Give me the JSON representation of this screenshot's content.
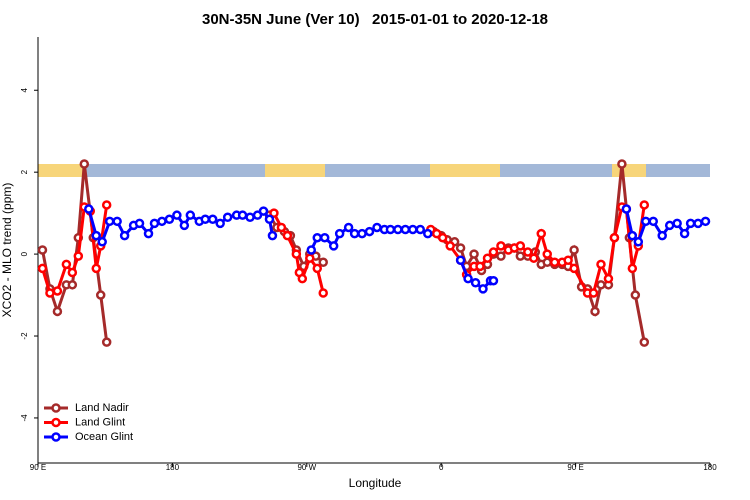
{
  "chart_data": {
    "type": "line",
    "title": "30N-35N June (Ver 10)   2015-01-01 to 2020-12-18",
    "x_label": "Longitude",
    "y_label": "XCO2 - MLO trend (ppm)",
    "xlim": [
      90,
      540
    ],
    "ylim": [
      -5.1,
      5.3
    ],
    "xticks": [
      {
        "value": 90,
        "label": "90 E"
      },
      180,
      {
        "value": 270,
        "label": "90 W"
      },
      {
        "value": 360,
        "label": "0"
      },
      {
        "value": 450,
        "label": "90 E"
      },
      {
        "value": 540,
        "label": "180"
      }
    ],
    "yticks": [
      -4,
      -2,
      0,
      2,
      4
    ],
    "legend": "bottom-left",
    "series": [
      {
        "name": "Land Nadir",
        "color": "#a52a2a",
        "x": [
          93,
          98,
          103,
          109,
          113,
          117,
          121,
          127,
          132,
          136,
          null,
          245,
          250,
          255,
          259,
          263,
          268,
          272,
          276,
          281,
          null,
          355,
          360,
          364,
          369,
          373,
          377,
          382,
          387,
          391,
          395,
          400,
          405,
          409,
          413,
          418,
          423,
          427,
          431,
          436,
          441,
          445,
          449,
          454,
          458,
          463,
          467,
          472,
          476,
          481,
          486,
          490,
          496
        ],
        "values": [
          0.1,
          -0.85,
          -1.4,
          -0.75,
          -0.75,
          0.4,
          2.2,
          0.4,
          -1.0,
          -2.15,
          null,
          0.95,
          0.65,
          0.55,
          0.45,
          0.1,
          -0.3,
          0,
          -0.05,
          -0.2,
          null,
          0.55,
          0.45,
          0.35,
          0.3,
          0.15,
          -0.3,
          0,
          -0.4,
          -0.25,
          0,
          -0.05,
          0.15,
          0.15,
          -0.05,
          -0.05,
          0.05,
          -0.25,
          -0.2,
          -0.25,
          -0.25,
          -0.3,
          0.1,
          -0.8,
          -0.85,
          -1.4,
          -0.75,
          -0.75,
          0.4,
          2.2,
          0.4,
          -1.0,
          -2.15
        ]
      },
      {
        "name": "Land Glint",
        "color": "#ff0000",
        "x": [
          93,
          98,
          103,
          109,
          113,
          117,
          121,
          125,
          129,
          132,
          136,
          null,
          248,
          253,
          257,
          263,
          265,
          267,
          272,
          277,
          281,
          null,
          353,
          357,
          361,
          366,
          373,
          377,
          382,
          386,
          391,
          395,
          400,
          405,
          409,
          413,
          418,
          422,
          427,
          431,
          436,
          441,
          445,
          449,
          458,
          462,
          467,
          472,
          476,
          481,
          484,
          488,
          492,
          496
        ],
        "values": [
          -0.35,
          -0.95,
          -0.9,
          -0.25,
          -0.45,
          -0.05,
          1.15,
          1.05,
          -0.35,
          0.2,
          1.2,
          null,
          1.0,
          0.65,
          0.45,
          0.0,
          -0.45,
          -0.6,
          -0.1,
          -0.35,
          -0.95,
          null,
          0.6,
          0.5,
          0.4,
          0.2,
          -0.15,
          -0.5,
          -0.3,
          -0.3,
          -0.1,
          0.05,
          0.2,
          0.1,
          0.15,
          0.2,
          0.05,
          -0.1,
          0.5,
          0.0,
          -0.2,
          -0.2,
          -0.15,
          -0.35,
          -0.95,
          -0.95,
          -0.25,
          -0.6,
          0.4,
          1.15,
          1.1,
          -0.35,
          0.2,
          1.2
        ]
      },
      {
        "name": "Ocean Glint",
        "color": "#0000ff",
        "x": [
          124,
          129,
          133,
          138,
          143,
          148,
          154,
          158,
          164,
          168,
          173,
          178,
          183,
          188,
          192,
          198,
          202,
          207,
          212,
          217,
          223,
          227,
          232,
          237,
          241,
          245,
          247,
          null,
          273,
          277,
          282,
          288,
          292,
          298,
          302,
          307,
          312,
          317,
          322,
          326,
          331,
          336,
          341,
          346,
          351,
          null,
          373,
          378,
          383,
          388,
          393,
          395,
          null,
          484,
          488,
          492,
          497,
          502,
          508,
          513,
          518,
          523,
          527,
          532,
          537
        ],
        "values": [
          1.1,
          0.45,
          0.3,
          0.8,
          0.8,
          0.45,
          0.7,
          0.75,
          0.5,
          0.75,
          0.8,
          0.85,
          0.95,
          0.7,
          0.95,
          0.8,
          0.85,
          0.85,
          0.75,
          0.9,
          0.95,
          0.95,
          0.9,
          0.95,
          1.05,
          0.85,
          0.45,
          null,
          0.1,
          0.4,
          0.4,
          0.2,
          0.5,
          0.65,
          0.5,
          0.5,
          0.55,
          0.65,
          0.6,
          0.6,
          0.6,
          0.6,
          0.6,
          0.6,
          0.5,
          null,
          -0.15,
          -0.6,
          -0.7,
          -0.85,
          -0.65,
          -0.65,
          null,
          1.1,
          0.45,
          0.3,
          0.8,
          0.8,
          0.45,
          0.7,
          0.75,
          0.5,
          0.75,
          0.75,
          0.8
        ]
      }
    ]
  }
}
